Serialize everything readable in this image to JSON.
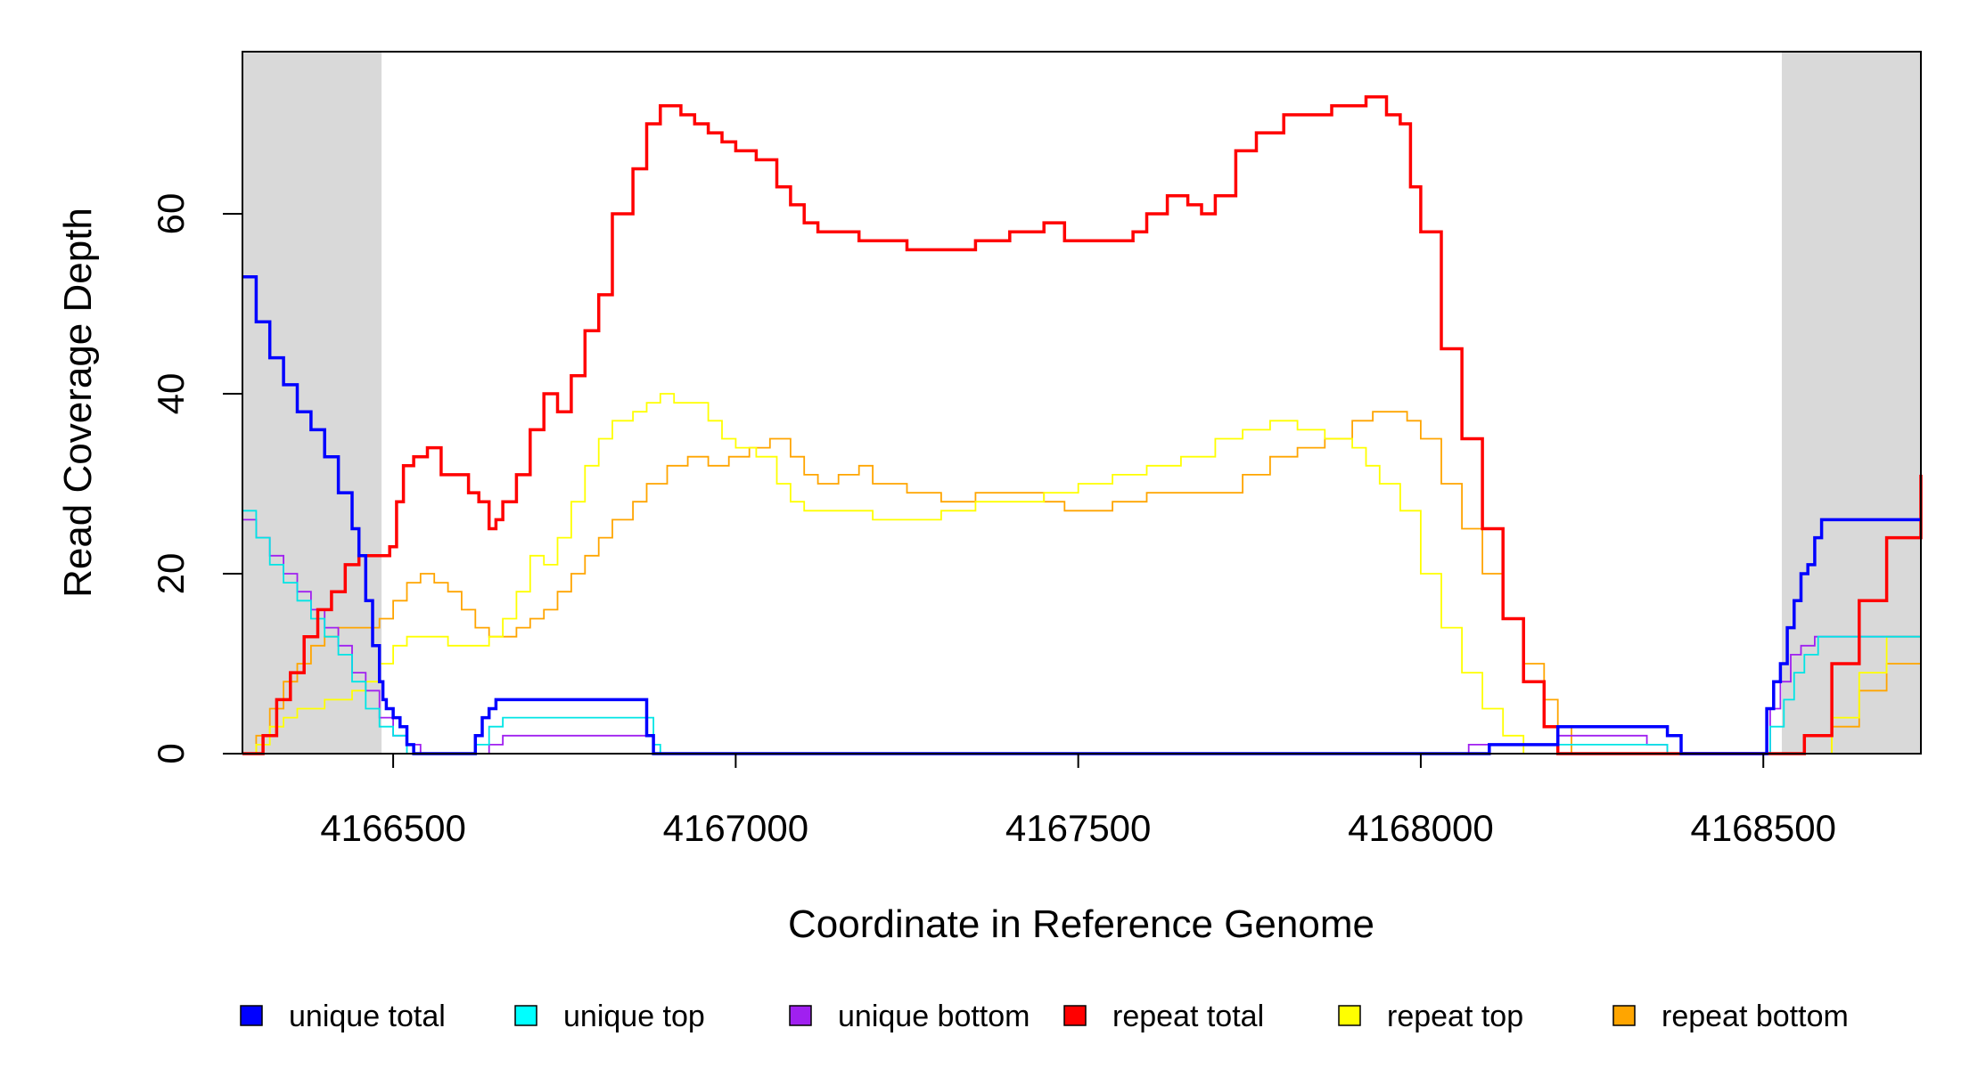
{
  "chart_data": {
    "type": "line",
    "xlabel": "Coordinate in Reference Genome",
    "ylabel": "Read Coverage Depth",
    "xlim": [
      4166280,
      4168730
    ],
    "ylim": [
      0,
      78
    ],
    "x_ticks": [
      4166500,
      4167000,
      4167500,
      4168000,
      4168500
    ],
    "x_tick_labels": [
      "4166500",
      "4167000",
      "4167500",
      "4168000",
      "4168500"
    ],
    "y_ticks": [
      0,
      20,
      40,
      60
    ],
    "y_tick_labels": [
      "0",
      "20",
      "40",
      "60"
    ],
    "shaded_regions": [
      [
        4166280,
        4166483
      ],
      [
        4168527,
        4168730
      ]
    ],
    "shade_color": "#d9d9d9",
    "grid": false,
    "legend_position": "bottom",
    "series": [
      {
        "name": "unique total",
        "color": "#0000ff",
        "x": [
          4166280,
          4166300,
          4166320,
          4166340,
          4166360,
          4166380,
          4166400,
          4166420,
          4166440,
          4166450,
          4166460,
          4166470,
          4166480,
          4166485,
          4166490,
          4166500,
          4166510,
          4166520,
          4166530,
          4166540,
          4166620,
          4166630,
          4166640,
          4166650,
          4166860,
          4166870,
          4166880,
          4166890,
          4168070,
          4168100,
          4168180,
          4168200,
          4168220,
          4168320,
          4168360,
          4168380,
          4168495,
          4168505,
          4168515,
          4168525,
          4168535,
          4168545,
          4168555,
          4168565,
          4168575,
          4168585,
          4168600,
          4168730
        ],
        "y": [
          53,
          48,
          44,
          41,
          38,
          36,
          33,
          29,
          25,
          22,
          17,
          12,
          8,
          6,
          5,
          4,
          3,
          1,
          0,
          0,
          2,
          4,
          5,
          6,
          6,
          2,
          0,
          0,
          0,
          1,
          1,
          3,
          3,
          3,
          2,
          0,
          0,
          5,
          8,
          10,
          14,
          17,
          20,
          21,
          24,
          26,
          26,
          26
        ]
      },
      {
        "name": "unique top",
        "color": "#00e5e5",
        "x": [
          4166280,
          4166300,
          4166320,
          4166340,
          4166360,
          4166380,
          4166400,
          4166420,
          4166440,
          4166460,
          4166480,
          4166500,
          4166520,
          4166540,
          4166620,
          4166640,
          4166660,
          4166860,
          4166880,
          4166890,
          4168180,
          4168200,
          4168360,
          4168380,
          4168495,
          4168510,
          4168530,
          4168545,
          4168560,
          4168580,
          4168730
        ],
        "y": [
          27,
          24,
          21,
          19,
          17,
          15,
          13,
          11,
          8,
          5,
          3,
          2,
          0,
          0,
          1,
          3,
          4,
          4,
          1,
          0,
          0,
          1,
          0,
          0,
          0,
          3,
          6,
          9,
          11,
          13,
          13
        ]
      },
      {
        "name": "unique bottom",
        "color": "#a020f0",
        "x": [
          4166280,
          4166300,
          4166320,
          4166340,
          4166360,
          4166380,
          4166400,
          4166420,
          4166440,
          4166460,
          4166480,
          4166500,
          4166520,
          4166540,
          4166620,
          4166640,
          4166660,
          4166860,
          4166880,
          4166890,
          4168070,
          4168200,
          4168330,
          4168360,
          4168380,
          4168495,
          4168510,
          4168525,
          4168540,
          4168555,
          4168575,
          4168730
        ],
        "y": [
          26,
          24,
          22,
          20,
          18,
          16,
          14,
          12,
          9,
          7,
          4,
          2,
          1,
          0,
          0,
          1,
          2,
          2,
          0,
          0,
          1,
          2,
          1,
          0,
          0,
          0,
          5,
          8,
          11,
          12,
          13,
          13
        ]
      },
      {
        "name": "repeat total",
        "color": "#ff0000",
        "x": [
          4166280,
          4166310,
          4166330,
          4166350,
          4166370,
          4166390,
          4166410,
          4166430,
          4166450,
          4166470,
          4166483,
          4166495,
          4166505,
          4166515,
          4166530,
          4166550,
          4166570,
          4166590,
          4166610,
          4166625,
          4166640,
          4166650,
          4166660,
          4166680,
          4166700,
          4166720,
          4166740,
          4166760,
          4166780,
          4166800,
          4166820,
          4166850,
          4166870,
          4166890,
          4166900,
          4166920,
          4166940,
          4166960,
          4166980,
          4167000,
          4167030,
          4167060,
          4167080,
          4167100,
          4167120,
          4167150,
          4167180,
          4167200,
          4167250,
          4167300,
          4167350,
          4167400,
          4167450,
          4167480,
          4167500,
          4167550,
          4167580,
          4167600,
          4167630,
          4167660,
          4167680,
          4167700,
          4167730,
          4167760,
          4167800,
          4167850,
          4167870,
          4167900,
          4167920,
          4167950,
          4167970,
          4167985,
          4168000,
          4168030,
          4168060,
          4168090,
          4168120,
          4168150,
          4168180,
          4168200,
          4168210,
          4168215,
          4168540,
          4168560,
          4168600,
          4168640,
          4168680,
          4168730
        ],
        "y": [
          0,
          2,
          6,
          9,
          13,
          16,
          18,
          21,
          22,
          22,
          22,
          23,
          28,
          32,
          33,
          34,
          31,
          31,
          29,
          28,
          25,
          26,
          28,
          31,
          36,
          40,
          38,
          42,
          47,
          51,
          60,
          65,
          70,
          72,
          72,
          71,
          70,
          69,
          68,
          67,
          66,
          63,
          61,
          59,
          58,
          58,
          57,
          57,
          56,
          56,
          57,
          58,
          59,
          57,
          57,
          57,
          58,
          60,
          62,
          61,
          60,
          62,
          67,
          69,
          71,
          71,
          72,
          72,
          73,
          71,
          70,
          63,
          58,
          45,
          35,
          25,
          15,
          8,
          3,
          0,
          0,
          0,
          0,
          2,
          10,
          17,
          24,
          31
        ]
      },
      {
        "name": "repeat top",
        "color": "#ffff00",
        "x": [
          4166280,
          4166300,
          4166320,
          4166340,
          4166360,
          4166380,
          4166400,
          4166420,
          4166440,
          4166460,
          4166480,
          4166500,
          4166520,
          4166540,
          4166560,
          4166580,
          4166600,
          4166620,
          4166640,
          4166660,
          4166680,
          4166700,
          4166720,
          4166740,
          4166760,
          4166780,
          4166800,
          4166820,
          4166850,
          4166870,
          4166890,
          4166910,
          4166940,
          4166960,
          4166980,
          4167000,
          4167030,
          4167060,
          4167080,
          4167100,
          4167130,
          4167160,
          4167200,
          4167250,
          4167300,
          4167350,
          4167400,
          4167450,
          4167500,
          4167550,
          4167600,
          4167650,
          4167700,
          4167740,
          4167780,
          4167820,
          4167860,
          4167900,
          4167920,
          4167940,
          4167970,
          4168000,
          4168030,
          4168060,
          4168090,
          4168120,
          4168150,
          4168180,
          4168200,
          4168215,
          4168560,
          4168600,
          4168640,
          4168680,
          4168730
        ],
        "y": [
          0,
          1,
          3,
          4,
          5,
          5,
          6,
          6,
          7,
          8,
          10,
          12,
          13,
          13,
          13,
          12,
          12,
          12,
          13,
          15,
          18,
          22,
          21,
          24,
          28,
          32,
          35,
          37,
          38,
          39,
          40,
          39,
          39,
          37,
          35,
          34,
          33,
          30,
          28,
          27,
          27,
          27,
          26,
          26,
          27,
          28,
          28,
          29,
          30,
          31,
          32,
          33,
          35,
          36,
          37,
          36,
          35,
          34,
          32,
          30,
          27,
          20,
          14,
          9,
          5,
          2,
          0,
          0,
          0,
          0,
          0,
          4,
          9,
          13,
          17
        ]
      },
      {
        "name": "repeat bottom",
        "color": "#ffa500",
        "x": [
          4166280,
          4166300,
          4166320,
          4166340,
          4166360,
          4166380,
          4166400,
          4166420,
          4166440,
          4166460,
          4166480,
          4166500,
          4166520,
          4166540,
          4166560,
          4166580,
          4166600,
          4166620,
          4166640,
          4166660,
          4166680,
          4166700,
          4166720,
          4166740,
          4166760,
          4166780,
          4166800,
          4166820,
          4166850,
          4166870,
          4166900,
          4166930,
          4166960,
          4166990,
          4167020,
          4167050,
          4167080,
          4167100,
          4167120,
          4167150,
          4167180,
          4167200,
          4167250,
          4167300,
          4167350,
          4167400,
          4167450,
          4167480,
          4167500,
          4167550,
          4167600,
          4167650,
          4167700,
          4167740,
          4167780,
          4167820,
          4167860,
          4167900,
          4167930,
          4167960,
          4167980,
          4168000,
          4168030,
          4168060,
          4168090,
          4168120,
          4168150,
          4168180,
          4168200,
          4168220,
          4168560,
          4168600,
          4168640,
          4168680,
          4168730
        ],
        "y": [
          0,
          2,
          5,
          8,
          10,
          12,
          13,
          14,
          14,
          14,
          15,
          17,
          19,
          20,
          19,
          18,
          16,
          14,
          13,
          13,
          14,
          15,
          16,
          18,
          20,
          22,
          24,
          26,
          28,
          30,
          32,
          33,
          32,
          33,
          34,
          35,
          33,
          31,
          30,
          31,
          32,
          30,
          29,
          28,
          29,
          29,
          28,
          27,
          27,
          28,
          29,
          29,
          29,
          31,
          33,
          34,
          35,
          37,
          38,
          38,
          37,
          35,
          30,
          25,
          20,
          15,
          10,
          6,
          3,
          0,
          0,
          3,
          7,
          10,
          13
        ]
      }
    ]
  },
  "legend": {
    "items": [
      {
        "label": "unique total",
        "color": "#0000ff"
      },
      {
        "label": "unique top",
        "color": "#00ffff"
      },
      {
        "label": "unique bottom",
        "color": "#a020f0"
      },
      {
        "label": "repeat total",
        "color": "#ff0000"
      },
      {
        "label": "repeat top",
        "color": "#ffff00"
      },
      {
        "label": "repeat bottom",
        "color": "#ffa500"
      }
    ]
  }
}
